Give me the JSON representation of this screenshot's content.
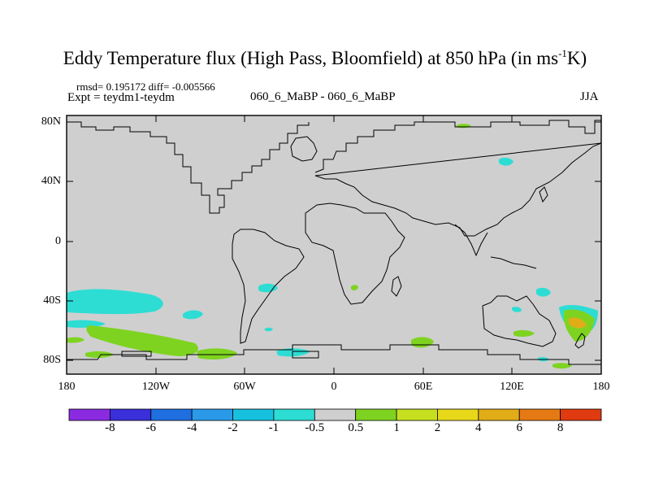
{
  "title": "Eddy Temperature flux (High Pass, Bloomfield) at 850 hPa (in ms",
  "title_sup": "-1",
  "title_tail": "K)",
  "stats": "rmsd= 0.195172 diff= -0.005566",
  "expt": "Expt = teydm1-teydm",
  "case": "060_6_MaBP - 060_6_MaBP",
  "season": "JJA",
  "lat_ticks": [
    "80N",
    "40N",
    "0",
    "40S",
    "80S"
  ],
  "lon_ticks": [
    "180",
    "120W",
    "60W",
    "0",
    "60E",
    "120E",
    "180"
  ],
  "colorbar": {
    "colors": [
      "#8a2be2",
      "#3a2fd9",
      "#1f6fe0",
      "#2a9ae8",
      "#18c0e0",
      "#2dddd4",
      "#cfcfcf",
      "#7ed321",
      "#c6e020",
      "#e8d81a",
      "#e0ad18",
      "#e57a14",
      "#e03a10"
    ],
    "labels": [
      "-8",
      "-6",
      "-4",
      "-2",
      "-1",
      "-0.5",
      "0.5",
      "1",
      "2",
      "4",
      "6",
      "8"
    ]
  },
  "map": {
    "background": "#cfcfcf",
    "positive_color": "#7ed321",
    "negative_color": "#2dddd4",
    "warm_color": "#e0ad18"
  }
}
